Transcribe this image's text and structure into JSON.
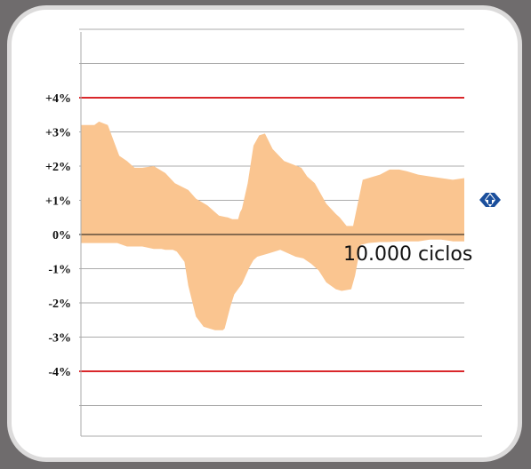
{
  "chart_data": {
    "type": "area",
    "title": "",
    "xlabel": "",
    "ylabel": "",
    "ylim": [
      -6.0,
      6.3
    ],
    "xlim": [
      0,
      100
    ],
    "y_tick_labels": [
      {
        "v": 4,
        "label": "+4%"
      },
      {
        "v": 3,
        "label": "+3%"
      },
      {
        "v": 2,
        "label": "+2%"
      },
      {
        "v": 1,
        "label": "+1%"
      },
      {
        "v": 0,
        "label": "0%"
      },
      {
        "v": -1,
        "label": "-1%"
      },
      {
        "v": -2,
        "label": "-2%"
      },
      {
        "v": -3,
        "label": "-3%"
      },
      {
        "v": -4,
        "label": "-4%"
      }
    ],
    "gridlines": [
      6,
      5,
      3,
      2,
      1,
      -1,
      -2,
      -3,
      -5
    ],
    "reference_lines": [
      4,
      -4
    ],
    "zero_line": 0,
    "band_upper": {
      "x": [
        0,
        3.5,
        4.7,
        7,
        10,
        12,
        14,
        16,
        19,
        22,
        24.5,
        28,
        30,
        33,
        36,
        38.3,
        39.5,
        41,
        41.5,
        42,
        43.5,
        45,
        46.5,
        48,
        50,
        53,
        57.5,
        59,
        61,
        64,
        66.5,
        67.5,
        69.3,
        71,
        73.5,
        78,
        80.5,
        83,
        85,
        88,
        91,
        94,
        97,
        100
      ],
      "y": [
        3.2,
        3.2,
        3.3,
        3.2,
        2.3,
        2.15,
        1.95,
        1.95,
        2.0,
        1.8,
        1.5,
        1.3,
        1.05,
        0.85,
        0.55,
        0.5,
        0.45,
        0.45,
        0.65,
        0.75,
        1.5,
        2.6,
        2.9,
        2.95,
        2.5,
        2.15,
        1.95,
        1.7,
        1.5,
        0.9,
        0.6,
        0.5,
        0.25,
        0.25,
        1.6,
        1.75,
        1.9,
        1.9,
        1.85,
        1.75,
        1.7,
        1.65,
        1.6,
        1.65
      ]
    },
    "band_lower": {
      "x": [
        0,
        9.5,
        12,
        16,
        19,
        20,
        21,
        22,
        23,
        24,
        25,
        27,
        28,
        30,
        32,
        35,
        37,
        37.5,
        39,
        40,
        42,
        44,
        45,
        46,
        49,
        52,
        56,
        58,
        60,
        62,
        64,
        66.5,
        68,
        70.5,
        71.5,
        73,
        75,
        78,
        80,
        83,
        85,
        88,
        91,
        94,
        97,
        100
      ],
      "y": [
        -0.25,
        -0.25,
        -0.35,
        -0.35,
        -0.42,
        -0.42,
        -0.42,
        -0.45,
        -0.45,
        -0.45,
        -0.5,
        -0.8,
        -1.5,
        -2.4,
        -2.7,
        -2.8,
        -2.8,
        -2.75,
        -2.1,
        -1.75,
        -1.45,
        -0.95,
        -0.75,
        -0.65,
        -0.55,
        -0.45,
        -0.65,
        -0.7,
        -0.85,
        -1.05,
        -1.4,
        -1.6,
        -1.65,
        -1.6,
        -1.2,
        -0.3,
        -0.25,
        -0.22,
        -0.22,
        -0.2,
        -0.2,
        -0.2,
        -0.15,
        -0.15,
        -0.2,
        -0.2
      ]
    },
    "annotation": "10.000 ciclos",
    "colors": {
      "band": "#fac590",
      "reference": "#d9272b",
      "grid": "#ababab",
      "zero": "#111111",
      "logo": "#1b4f9c"
    },
    "logo_icon": "arrow-up-in-chevron-diamond-icon"
  }
}
